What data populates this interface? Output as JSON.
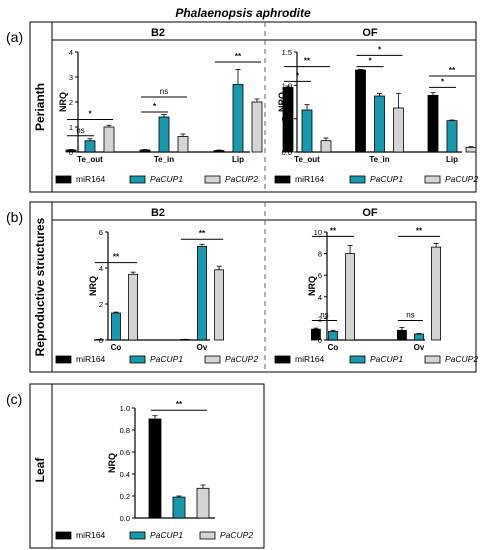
{
  "figure": {
    "title": "Phalaenopsis aphrodite",
    "colors": {
      "miR164": "#000000",
      "PaCUP1": "#1b98ad",
      "PaCUP2": "#d4d4d4"
    },
    "legend": [
      {
        "key": "miR164",
        "label": "miR164",
        "italic": false
      },
      {
        "key": "PaCUP1",
        "label": "PaCUP1",
        "italic": true
      },
      {
        "key": "PaCUP2",
        "label": "PaCUP2",
        "italic": true
      }
    ],
    "panels": {
      "a": {
        "letter": "(a)",
        "row_label": "Perianth",
        "left_header": "B2",
        "right_header": "OF"
      },
      "b": {
        "letter": "(b)",
        "row_label": "Reproductive structures",
        "left_header": "B2",
        "right_header": "OF"
      },
      "c": {
        "letter": "(c)",
        "row_label": "Leaf"
      }
    }
  },
  "chart_data": [
    {
      "id": "a_B2",
      "type": "bar",
      "panel": "(a)",
      "title": "B2",
      "ylabel": "NRQ",
      "xlabel": "",
      "ylim": [
        0,
        4
      ],
      "yticks": [
        0,
        1,
        2,
        3,
        4
      ],
      "categories": [
        "Te_out",
        "Te_in",
        "Lip"
      ],
      "series": [
        {
          "name": "miR164",
          "values": [
            0.08,
            0.08,
            0.06
          ],
          "errors": [
            0.02,
            0.02,
            0.02
          ]
        },
        {
          "name": "PaCUP1",
          "values": [
            0.45,
            1.4,
            2.7
          ],
          "errors": [
            0.08,
            0.1,
            0.6
          ]
        },
        {
          "name": "PaCUP2",
          "values": [
            1.0,
            0.62,
            2.0
          ],
          "errors": [
            0.07,
            0.1,
            0.12
          ]
        }
      ],
      "annotations": [
        {
          "from": 0,
          "to": 1,
          "y": 0.65,
          "text": "ns",
          "type": "ns"
        },
        {
          "from": 0,
          "to": 2,
          "y": 1.3,
          "text": "*",
          "type": "star"
        },
        {
          "from": 3,
          "to": 4,
          "y": 1.6,
          "text": "*",
          "type": "star"
        },
        {
          "from": 3,
          "to": 5,
          "y": 2.2,
          "text": "ns",
          "type": "ns"
        },
        {
          "from": 6,
          "to": 8,
          "y": 3.6,
          "text": "**",
          "type": "star"
        }
      ]
    },
    {
      "id": "a_OF",
      "type": "bar",
      "panel": "(a)",
      "title": "OF",
      "ylabel": "NRQ",
      "xlabel": "",
      "ylim": [
        0,
        1.5
      ],
      "yticks": [
        0.0,
        0.5,
        1.0,
        1.5
      ],
      "categories": [
        "Te_out",
        "Te_in",
        "Lip"
      ],
      "series": [
        {
          "name": "miR164",
          "values": [
            0.97,
            1.23,
            0.85
          ],
          "errors": [
            0.02,
            0.01,
            0.04
          ]
        },
        {
          "name": "PaCUP1",
          "values": [
            0.63,
            0.84,
            0.47
          ],
          "errors": [
            0.08,
            0.04,
            0.01
          ]
        },
        {
          "name": "PaCUP2",
          "values": [
            0.17,
            0.66,
            0.07
          ],
          "errors": [
            0.04,
            0.22,
            0.01
          ]
        }
      ],
      "annotations": [
        {
          "from": 0,
          "to": 1,
          "y": 1.06,
          "text": "*",
          "type": "star"
        },
        {
          "from": 0,
          "to": 2,
          "y": 1.28,
          "text": "**",
          "type": "star"
        },
        {
          "from": 3,
          "to": 4,
          "y": 1.28,
          "text": "*",
          "type": "star"
        },
        {
          "from": 3,
          "to": 5,
          "y": 1.45,
          "text": "*",
          "type": "star"
        },
        {
          "from": 6,
          "to": 7,
          "y": 0.97,
          "text": "*",
          "type": "star"
        },
        {
          "from": 6,
          "to": 8,
          "y": 1.14,
          "text": "**",
          "type": "star"
        }
      ]
    },
    {
      "id": "b_B2",
      "type": "bar",
      "panel": "(b)",
      "title": "B2",
      "ylabel": "NRQ",
      "xlabel": "",
      "ylim": [
        0,
        6
      ],
      "yticks": [
        0,
        2,
        4,
        6
      ],
      "categories": [
        "Co",
        "Ov"
      ],
      "series": [
        {
          "name": "miR164",
          "values": [
            0.02,
            0.03
          ],
          "errors": [
            0.01,
            0.01
          ]
        },
        {
          "name": "PaCUP1",
          "values": [
            1.5,
            5.2
          ],
          "errors": [
            0.05,
            0.12
          ]
        },
        {
          "name": "PaCUP2",
          "values": [
            3.65,
            3.9
          ],
          "errors": [
            0.12,
            0.2
          ]
        }
      ],
      "annotations": [
        {
          "from": 0,
          "to": 2,
          "y": 4.3,
          "text": "**",
          "type": "star"
        },
        {
          "from": 3,
          "to": 5,
          "y": 5.6,
          "text": "**",
          "type": "star"
        }
      ]
    },
    {
      "id": "b_OF",
      "type": "bar",
      "panel": "(b)",
      "title": "OF",
      "ylabel": "NRQ",
      "xlabel": "",
      "ylim": [
        0,
        10
      ],
      "yticks": [
        0,
        2,
        4,
        6,
        8,
        10
      ],
      "categories": [
        "Co",
        "Ov"
      ],
      "series": [
        {
          "name": "miR164",
          "values": [
            1.0,
            0.9
          ],
          "errors": [
            0.1,
            0.25
          ]
        },
        {
          "name": "PaCUP1",
          "values": [
            0.8,
            0.55
          ],
          "errors": [
            0.1,
            0.05
          ]
        },
        {
          "name": "PaCUP2",
          "values": [
            8.0,
            8.6
          ],
          "errors": [
            0.75,
            0.35
          ]
        }
      ],
      "annotations": [
        {
          "from": 0,
          "to": 1,
          "y": 1.8,
          "text": "ns",
          "type": "ns"
        },
        {
          "from": 0,
          "to": 2,
          "y": 9.6,
          "text": "**",
          "type": "star"
        },
        {
          "from": 3,
          "to": 4,
          "y": 1.8,
          "text": "ns",
          "type": "ns"
        },
        {
          "from": 3,
          "to": 5,
          "y": 9.6,
          "text": "**",
          "type": "star"
        }
      ]
    },
    {
      "id": "c_leaf",
      "type": "bar",
      "panel": "(c)",
      "title": "",
      "ylabel": "NRQ",
      "xlabel": "",
      "ylim": [
        0,
        1.0
      ],
      "yticks": [
        0.0,
        0.2,
        0.4,
        0.6,
        0.8,
        1.0
      ],
      "categories": [
        ""
      ],
      "series": [
        {
          "name": "miR164",
          "values": [
            0.9
          ],
          "errors": [
            0.03
          ]
        },
        {
          "name": "PaCUP1",
          "values": [
            0.19
          ],
          "errors": [
            0.01
          ]
        },
        {
          "name": "PaCUP2",
          "values": [
            0.27
          ],
          "errors": [
            0.03
          ]
        }
      ],
      "annotations": [
        {
          "from": 0,
          "to": 2,
          "y": 0.98,
          "text": "**",
          "type": "star"
        }
      ]
    }
  ]
}
